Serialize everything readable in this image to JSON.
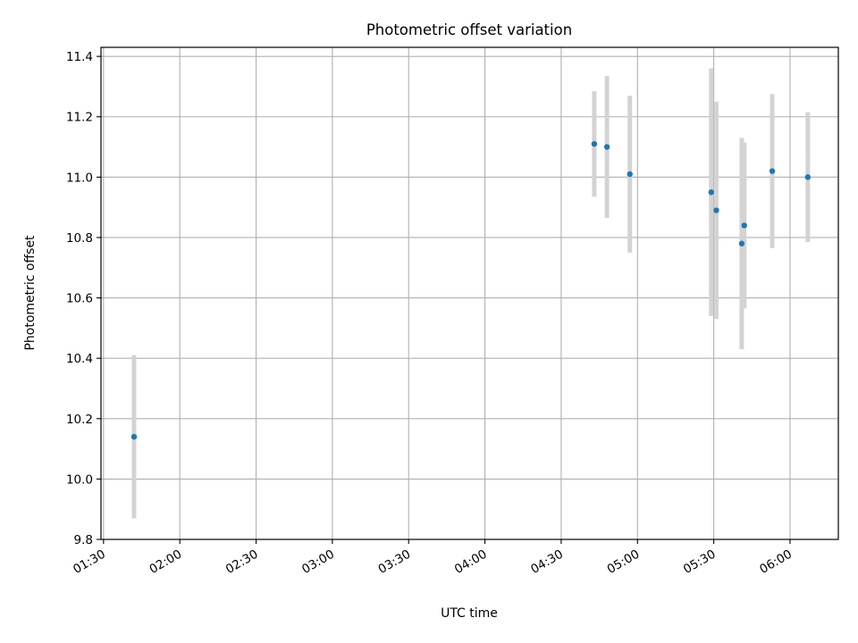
{
  "chart_data": {
    "type": "scatter",
    "title": "Photometric offset variation",
    "xlabel": "UTC time",
    "ylabel": "Photometric offset",
    "grid": true,
    "xlim": [
      "01:29",
      "06:19"
    ],
    "ylim": [
      9.8,
      11.43
    ],
    "x_ticks": [
      "01:30",
      "02:00",
      "02:30",
      "03:00",
      "03:30",
      "04:00",
      "04:30",
      "05:00",
      "05:30",
      "06:00"
    ],
    "y_ticks": [
      9.8,
      10.0,
      10.2,
      10.4,
      10.6,
      10.8,
      11.0,
      11.2,
      11.4
    ],
    "point_color": "#1f77b4",
    "errorbar_color": "#d3d3d3",
    "points": [
      {
        "time": "01:42",
        "value": 10.14,
        "err": 0.27
      },
      {
        "time": "04:43",
        "value": 11.11,
        "err": 0.175
      },
      {
        "time": "04:48",
        "value": 11.1,
        "err": 0.235
      },
      {
        "time": "04:57",
        "value": 11.01,
        "err": 0.26
      },
      {
        "time": "05:29",
        "value": 10.95,
        "err": 0.41
      },
      {
        "time": "05:31",
        "value": 10.89,
        "err": 0.36
      },
      {
        "time": "05:41",
        "value": 10.78,
        "err": 0.35
      },
      {
        "time": "05:42",
        "value": 10.84,
        "err": 0.275
      },
      {
        "time": "05:53",
        "value": 11.02,
        "err": 0.255
      },
      {
        "time": "06:07",
        "value": 11.0,
        "err": 0.215
      }
    ]
  }
}
